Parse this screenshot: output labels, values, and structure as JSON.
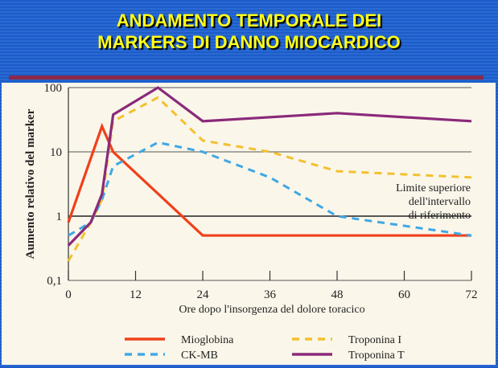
{
  "slide": {
    "title_line1": "ANDAMENTO TEMPORALE DEI",
    "title_line2": "MARKERS DI DANNO MIOCARDICO"
  },
  "chart_data": {
    "type": "line",
    "title": "",
    "xlabel": "Ore dopo l'insorgenza del dolore toracico",
    "ylabel": "Aumento relativo del marker",
    "xlim": [
      0,
      72
    ],
    "ylim": [
      0.1,
      100
    ],
    "yscale": "log",
    "xticks": [
      "0",
      "12",
      "24",
      "36",
      "48",
      "60",
      "72"
    ],
    "yticks": [
      "0,1",
      "1",
      "10",
      "100"
    ],
    "annotation": [
      "Limite superiore",
      "dell'intervallo",
      "di riferimento"
    ],
    "legend_position": "bottom",
    "series": [
      {
        "name": "Mioglobina",
        "color": "#f0401a",
        "dash": false,
        "x": [
          0,
          6,
          8,
          24,
          72
        ],
        "y": [
          0.8,
          25,
          10,
          0.5,
          0.5
        ]
      },
      {
        "name": "Troponina I",
        "color": "#f2c12e",
        "dash": true,
        "x": [
          0,
          4,
          6,
          8,
          16,
          24,
          36,
          48,
          72
        ],
        "y": [
          0.2,
          0.8,
          1.8,
          30,
          70,
          15,
          10,
          5,
          4
        ]
      },
      {
        "name": "CK-MB",
        "color": "#3fa8e4",
        "dash": true,
        "x": [
          0,
          4,
          6,
          8,
          16,
          24,
          36,
          48,
          72
        ],
        "y": [
          0.5,
          0.8,
          1.8,
          6,
          14,
          10,
          4,
          1,
          0.5
        ]
      },
      {
        "name": "Troponina T",
        "color": "#8a2a7a",
        "dash": false,
        "x": [
          0,
          4,
          6,
          8,
          16,
          24,
          48,
          72
        ],
        "y": [
          0.35,
          0.8,
          2.2,
          38,
          100,
          30,
          40,
          30
        ]
      }
    ]
  }
}
